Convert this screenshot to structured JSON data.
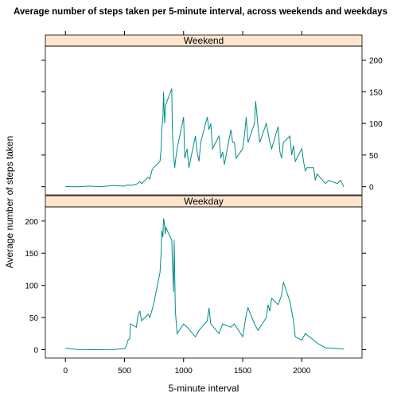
{
  "chart_data": {
    "type": "line",
    "title": "Average number of steps taken per 5-minute interval, across weekends and weekdays",
    "xlabel": "5-minute interval",
    "ylabel": "Average number of steps taken",
    "xlim": [
      -170,
      2510
    ],
    "ylim": [
      -13,
      222
    ],
    "xticks": [
      0,
      500,
      1000,
      1500,
      2000
    ],
    "yticks": [
      0,
      50,
      100,
      150,
      200
    ],
    "color": "#008b8b",
    "strip_color": "#ffe5cc",
    "panels": [
      {
        "name": "Weekend",
        "x": [
          0,
          100,
          200,
          300,
          400,
          500,
          530,
          545,
          600,
          615,
          630,
          645,
          700,
          715,
          730,
          745,
          800,
          810,
          815,
          825,
          830,
          840,
          845,
          850,
          900,
          905,
          915,
          925,
          930,
          945,
          1000,
          1010,
          1030,
          1045,
          1100,
          1115,
          1130,
          1145,
          1200,
          1215,
          1230,
          1245,
          1300,
          1315,
          1330,
          1345,
          1400,
          1415,
          1430,
          1445,
          1500,
          1515,
          1530,
          1545,
          1600,
          1610,
          1630,
          1645,
          1700,
          1715,
          1730,
          1745,
          1800,
          1815,
          1830,
          1845,
          1900,
          1915,
          1930,
          1945,
          2000,
          2015,
          2030,
          2045,
          2100,
          2115,
          2130,
          2200,
          2230,
          2300,
          2330,
          2355
        ],
        "values": [
          0.2,
          0,
          1,
          0,
          2,
          1,
          3,
          2,
          4,
          6,
          8,
          5,
          15,
          12,
          25,
          30,
          40,
          60,
          90,
          110,
          150,
          100,
          120,
          130,
          155,
          90,
          50,
          30,
          40,
          60,
          110,
          45,
          60,
          30,
          80,
          55,
          40,
          70,
          110,
          90,
          100,
          60,
          80,
          45,
          55,
          35,
          90,
          70,
          70,
          45,
          60,
          80,
          110,
          70,
          100,
          135,
          95,
          70,
          100,
          85,
          70,
          60,
          95,
          55,
          45,
          70,
          80,
          50,
          65,
          40,
          60,
          40,
          25,
          30,
          30,
          10,
          20,
          5,
          10,
          5,
          10,
          0
        ]
      },
      {
        "name": "Weekday",
        "x": [
          0,
          100,
          200,
          300,
          400,
          500,
          515,
          530,
          545,
          550,
          600,
          615,
          630,
          645,
          700,
          715,
          730,
          745,
          800,
          810,
          815,
          825,
          830,
          835,
          845,
          850,
          900,
          905,
          915,
          920,
          930,
          945,
          1000,
          1030,
          1100,
          1130,
          1200,
          1215,
          1230,
          1300,
          1330,
          1400,
          1430,
          1500,
          1530,
          1545,
          1600,
          1630,
          1700,
          1715,
          1730,
          1745,
          1800,
          1830,
          1845,
          1900,
          1915,
          1930,
          1945,
          2000,
          2030,
          2100,
          2130,
          2200,
          2300,
          2355
        ],
        "values": [
          2.3,
          0.4,
          0,
          0,
          0.2,
          1.5,
          5,
          15,
          18,
          40,
          35,
          55,
          60,
          45,
          55,
          50,
          60,
          70,
          120,
          150,
          185,
          175,
          204,
          200,
          180,
          190,
          170,
          140,
          90,
          170,
          60,
          25,
          40,
          35,
          20,
          30,
          45,
          65,
          40,
          25,
          40,
          35,
          40,
          20,
          55,
          65,
          40,
          30,
          50,
          70,
          60,
          80,
          70,
          85,
          105,
          75,
          60,
          45,
          20,
          15,
          25,
          15,
          10,
          3,
          2,
          1
        ]
      }
    ]
  }
}
